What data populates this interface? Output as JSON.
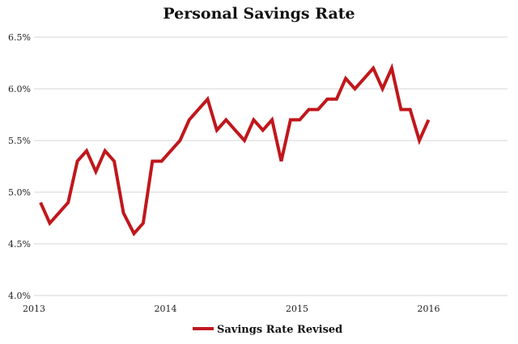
{
  "chart_data": {
    "type": "line",
    "title": "Personal Savings Rate",
    "ylim": [
      4.0,
      6.5
    ],
    "y_ticks": [
      "4.0%",
      "4.5%",
      "5.0%",
      "5.5%",
      "6.0%",
      "6.5%"
    ],
    "y_tick_values": [
      4.0,
      4.5,
      5.0,
      5.5,
      6.0,
      6.5
    ],
    "x_ticks": [
      "2013",
      "2014",
      "2015",
      "2016"
    ],
    "x_tick_values": [
      2013,
      2014,
      2015,
      2016
    ],
    "xlim": [
      2013,
      2016.6
    ],
    "grid": true,
    "legend_position": "bottom",
    "series": [
      {
        "name": "Savings Rate Revised",
        "color": "#c0171c",
        "points": [
          [
            2013.05,
            4.9
          ],
          [
            2013.12,
            4.7
          ],
          [
            2013.19,
            4.8
          ],
          [
            2013.26,
            4.9
          ],
          [
            2013.33,
            5.3
          ],
          [
            2013.4,
            5.4
          ],
          [
            2013.47,
            5.2
          ],
          [
            2013.54,
            5.4
          ],
          [
            2013.61,
            5.3
          ],
          [
            2013.68,
            4.8
          ],
          [
            2013.76,
            4.6
          ],
          [
            2013.83,
            4.7
          ],
          [
            2013.9,
            5.3
          ],
          [
            2013.97,
            5.3
          ],
          [
            2014.04,
            5.4
          ],
          [
            2014.11,
            5.5
          ],
          [
            2014.18,
            5.7
          ],
          [
            2014.25,
            5.8
          ],
          [
            2014.32,
            5.9
          ],
          [
            2014.39,
            5.6
          ],
          [
            2014.46,
            5.7
          ],
          [
            2014.53,
            5.6
          ],
          [
            2014.6,
            5.5
          ],
          [
            2014.67,
            5.7
          ],
          [
            2014.74,
            5.6
          ],
          [
            2014.81,
            5.7
          ],
          [
            2014.88,
            5.3
          ],
          [
            2014.95,
            5.7
          ],
          [
            2015.02,
            5.7
          ],
          [
            2015.09,
            5.8
          ],
          [
            2015.16,
            5.8
          ],
          [
            2015.23,
            5.9
          ],
          [
            2015.3,
            5.9
          ],
          [
            2015.37,
            6.1
          ],
          [
            2015.44,
            6.0
          ],
          [
            2015.51,
            6.1
          ],
          [
            2015.58,
            6.2
          ],
          [
            2015.65,
            6.0
          ],
          [
            2015.72,
            6.2
          ],
          [
            2015.79,
            5.8
          ],
          [
            2015.86,
            5.8
          ],
          [
            2015.93,
            5.5
          ],
          [
            2016.0,
            5.7
          ]
        ]
      }
    ]
  }
}
